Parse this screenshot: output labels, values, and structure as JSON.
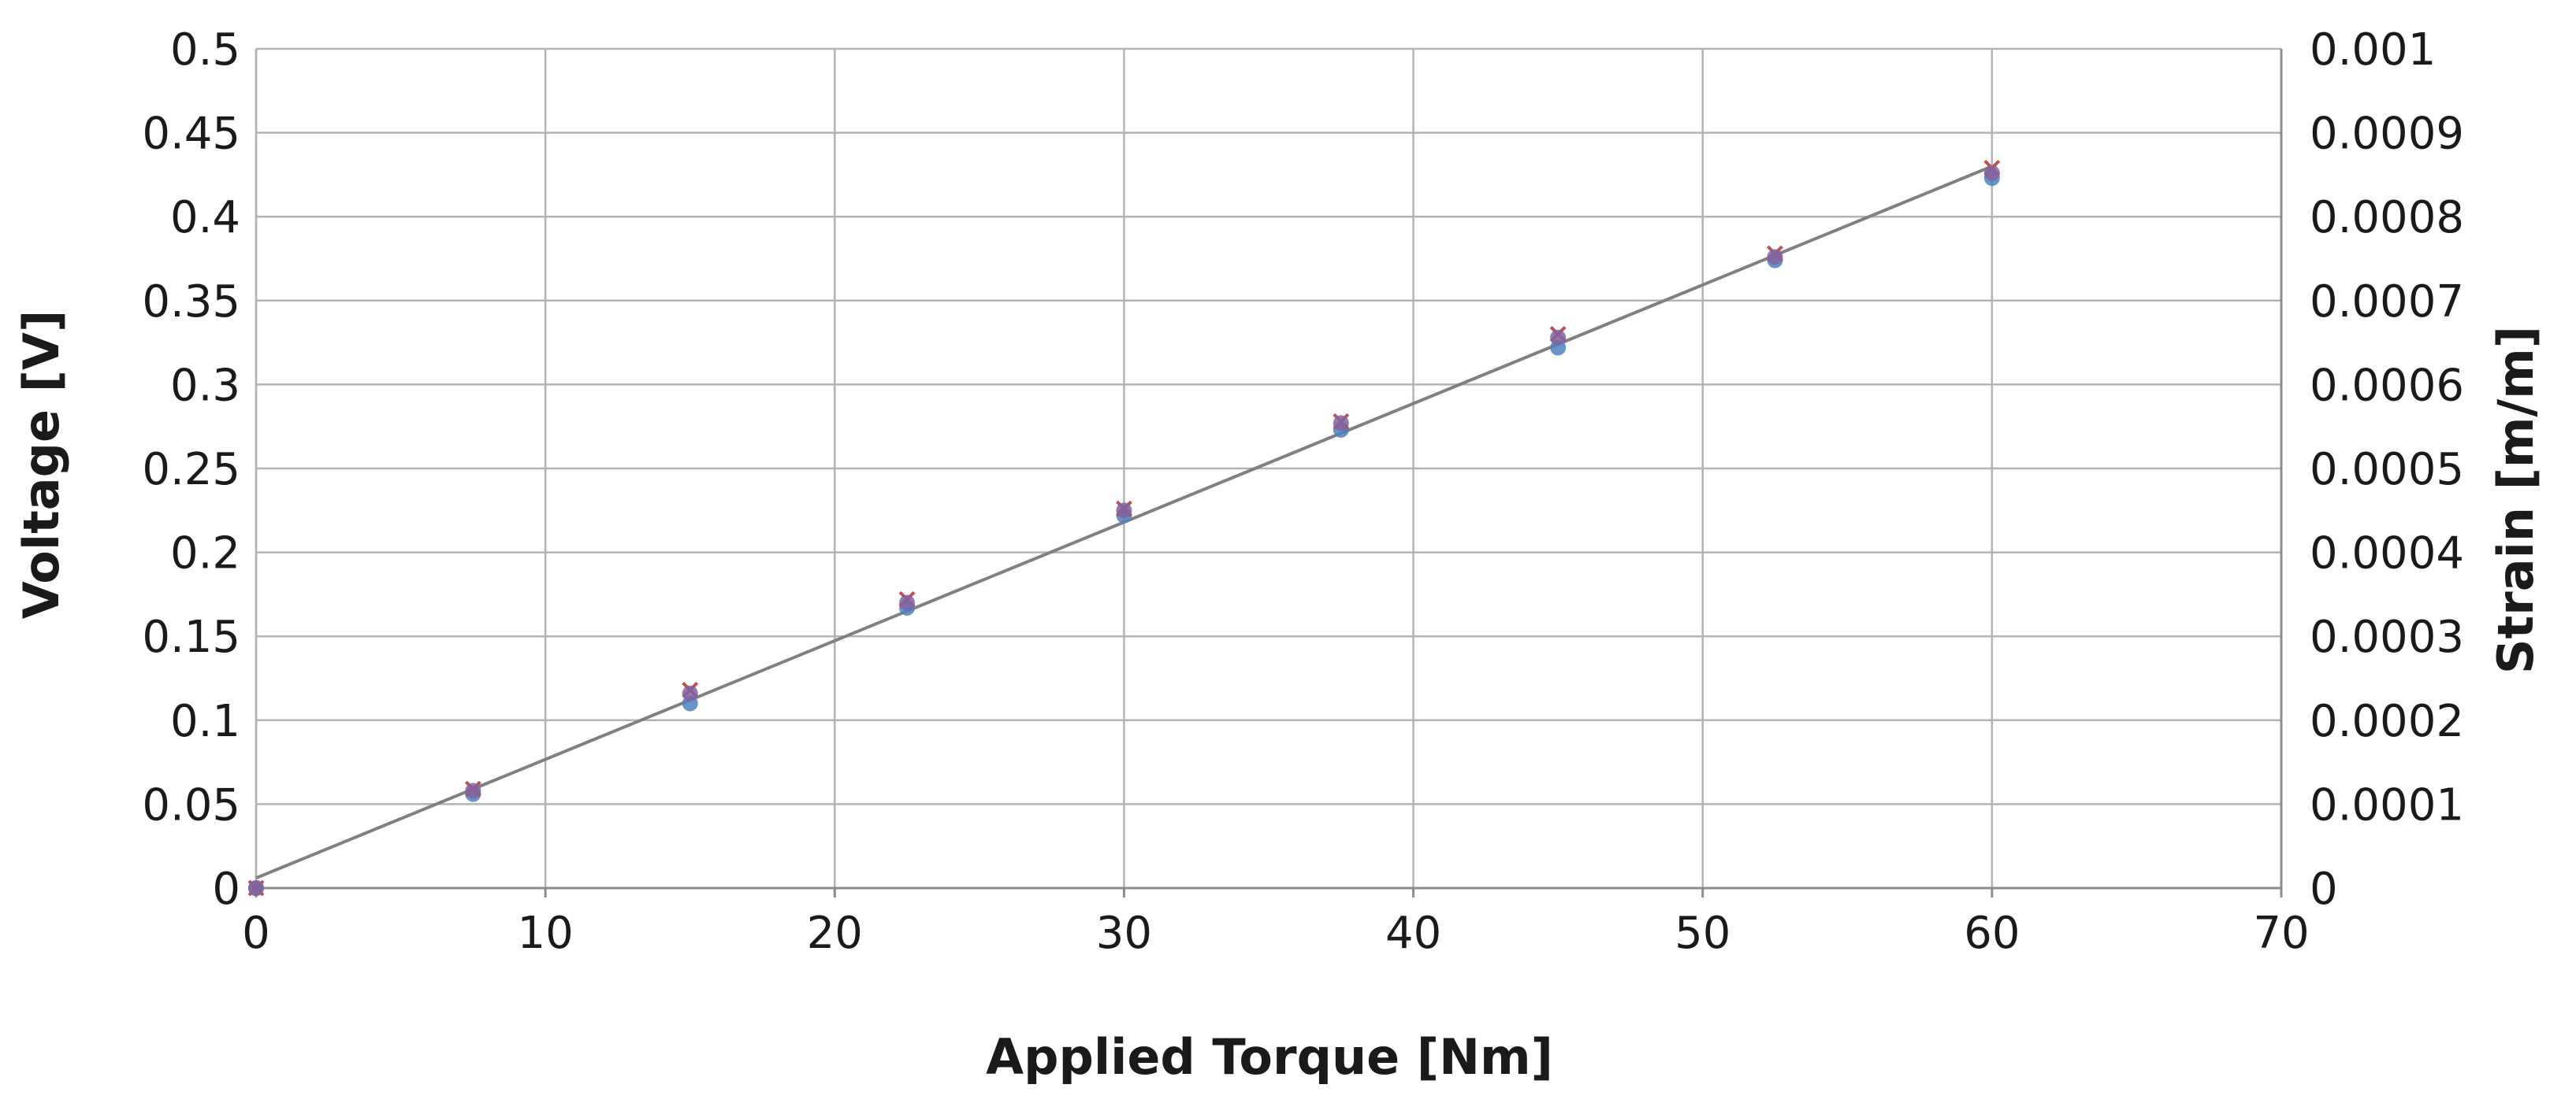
{
  "chart_data": {
    "type": "scatter",
    "title": "",
    "xlabel": "Applied Torque [Nm]",
    "ylabel": "Voltage [V]",
    "y2label": "Strain [m/m]",
    "xlim": [
      0,
      70
    ],
    "ylim": [
      0,
      0.5
    ],
    "y2lim": [
      0,
      0.001
    ],
    "xticks": [
      "0",
      "10",
      "20",
      "30",
      "40",
      "50",
      "60",
      "70"
    ],
    "yticks": [
      "0",
      "0.05",
      "0.1",
      "0.15",
      "0.2",
      "0.25",
      "0.3",
      "0.35",
      "0.4",
      "0.45",
      "0.5"
    ],
    "y2ticks": [
      "0",
      "0.0001",
      "0.0002",
      "0.0003",
      "0.0004",
      "0.0005",
      "0.0006",
      "0.0007",
      "0.0008",
      "0.0009",
      "0.001"
    ],
    "grid": true,
    "legend": "none",
    "series": [
      {
        "color": "#4f81bd",
        "marker": "circle",
        "x": [
          0,
          7.5,
          15,
          22.5,
          30,
          37.5,
          45,
          52.5,
          60
        ],
        "y": [
          0,
          0.056,
          0.11,
          0.167,
          0.222,
          0.273,
          0.322,
          0.374,
          0.423
        ]
      },
      {
        "color": "#c0504d",
        "marker": "x",
        "x": [
          0,
          7.5,
          15,
          22.5,
          30,
          37.5,
          45,
          52.5,
          60
        ],
        "y": [
          0,
          0.059,
          0.118,
          0.172,
          0.226,
          0.278,
          0.33,
          0.378,
          0.429
        ]
      },
      {
        "color": "#8064a2",
        "marker": "circle",
        "x": [
          0,
          7.5,
          15,
          22.5,
          30,
          37.5,
          45,
          52.5,
          60
        ],
        "y": [
          0,
          0.058,
          0.116,
          0.17,
          0.225,
          0.277,
          0.328,
          0.376,
          0.426
        ]
      }
    ],
    "trendline": {
      "color": "#808080",
      "x": [
        0,
        60
      ],
      "y": [
        0.006,
        0.43
      ]
    }
  }
}
